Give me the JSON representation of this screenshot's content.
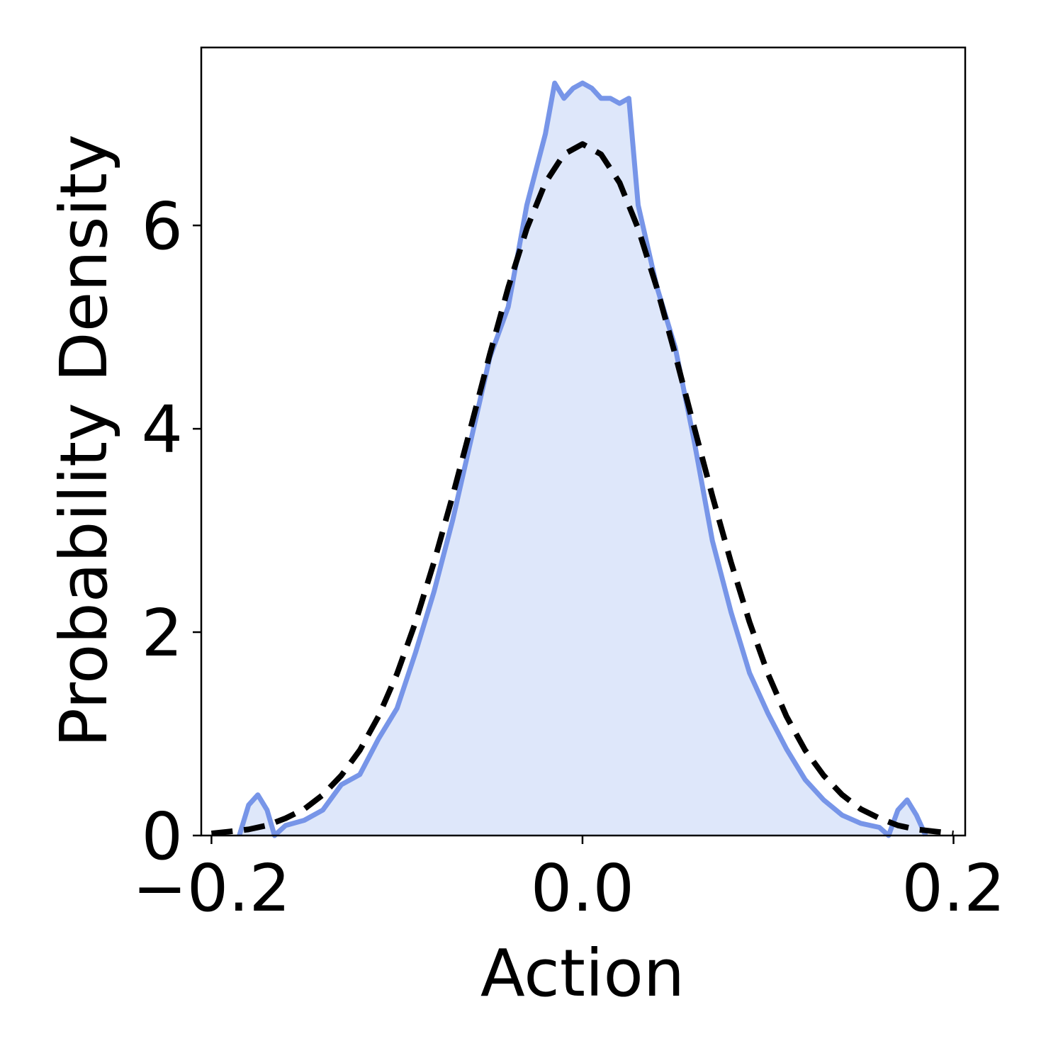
{
  "chart_data": {
    "type": "density",
    "xlabel": "Action",
    "ylabel": "Probability Density",
    "xlim": [
      -0.2055,
      0.2063
    ],
    "ylim": [
      0,
      7.75
    ],
    "xticks": [
      {
        "value": -0.2,
        "label": "−0.2"
      },
      {
        "value": 0,
        "label": "0.0"
      },
      0.2
    ],
    "yticks": [
      0,
      2,
      4,
      6
    ],
    "series": [
      {
        "color": "#7795e8",
        "fill": "#dee7fa",
        "dashed": false,
        "x": [
          -0.185,
          -0.18,
          -0.175,
          -0.17,
          -0.166,
          -0.16,
          -0.15,
          -0.14,
          -0.13,
          -0.12,
          -0.11,
          -0.1,
          -0.09,
          -0.08,
          -0.07,
          -0.06,
          -0.05,
          -0.04,
          -0.03,
          -0.02,
          -0.015,
          -0.01,
          -0.005,
          0,
          0.005,
          0.01,
          0.015,
          0.02,
          0.025,
          0.03,
          0.04,
          0.05,
          0.06,
          0.07,
          0.08,
          0.09,
          0.1,
          0.11,
          0.12,
          0.13,
          0.14,
          0.15,
          0.16,
          0.165,
          0.17,
          0.175,
          0.18,
          0.185
        ],
        "values": [
          0,
          0.3,
          0.4,
          0.25,
          0,
          0.1,
          0.15,
          0.25,
          0.5,
          0.6,
          0.95,
          1.25,
          1.8,
          2.4,
          3.1,
          3.9,
          4.7,
          5.2,
          6.2,
          6.9,
          7.4,
          7.25,
          7.35,
          7.4,
          7.35,
          7.25,
          7.25,
          7.2,
          7.25,
          6.2,
          5.4,
          4.8,
          3.9,
          2.9,
          2.2,
          1.6,
          1.2,
          0.85,
          0.55,
          0.35,
          0.2,
          0.12,
          0.08,
          0,
          0.25,
          0.35,
          0.2,
          0
        ]
      },
      {
        "color": "#000000",
        "dashed": true,
        "x": [
          -0.2,
          -0.19,
          -0.18,
          -0.17,
          -0.16,
          -0.15,
          -0.14,
          -0.13,
          -0.12,
          -0.11,
          -0.1,
          -0.09,
          -0.08,
          -0.07,
          -0.06,
          -0.05,
          -0.04,
          -0.03,
          -0.02,
          -0.01,
          0,
          0.01,
          0.02,
          0.03,
          0.04,
          0.05,
          0.06,
          0.07,
          0.08,
          0.09,
          0.1,
          0.11,
          0.12,
          0.13,
          0.14,
          0.15,
          0.16,
          0.17,
          0.18,
          0.19,
          0.2
        ],
        "values": [
          0.02,
          0.04,
          0.06,
          0.1,
          0.17,
          0.26,
          0.4,
          0.59,
          0.84,
          1.17,
          1.59,
          2.1,
          2.69,
          3.34,
          4.03,
          4.73,
          5.39,
          5.97,
          6.42,
          6.7,
          6.8,
          6.7,
          6.42,
          5.97,
          5.39,
          4.73,
          4.03,
          3.34,
          2.69,
          2.1,
          1.59,
          1.17,
          0.84,
          0.59,
          0.4,
          0.26,
          0.17,
          0.1,
          0.06,
          0.04,
          0.02
        ]
      }
    ]
  }
}
